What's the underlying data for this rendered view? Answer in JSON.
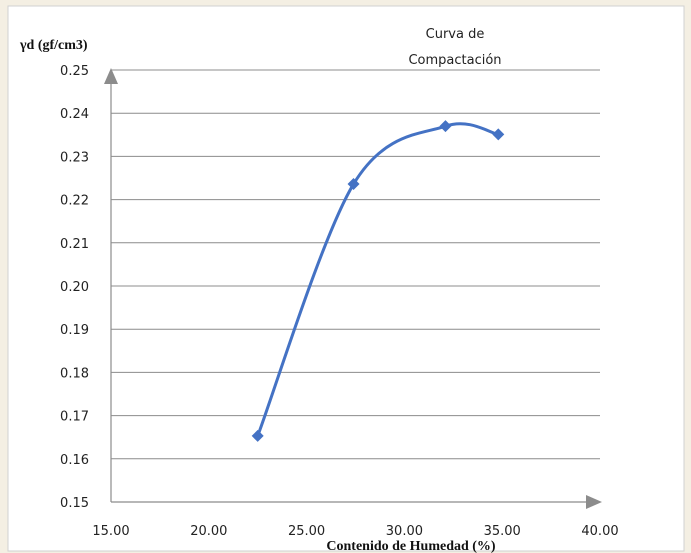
{
  "chart_data": {
    "type": "line",
    "title_lines": [
      "Curva de",
      "Compactación"
    ],
    "ylabel": "γd (gf/cm3)",
    "xlabel": "Contenido de Humedad (%)",
    "xlim": [
      15,
      40
    ],
    "ylim": [
      0.15,
      0.25
    ],
    "x_ticks": [
      "15.00",
      "20.00",
      "25.00",
      "30.00",
      "35.00",
      "40.00"
    ],
    "y_ticks": [
      "0.15",
      "0.16",
      "0.17",
      "0.18",
      "0.19",
      "0.20",
      "0.21",
      "0.22",
      "0.23",
      "0.24",
      "0.25"
    ],
    "grid": true,
    "smooth": true,
    "marker": "diamond",
    "series": [
      {
        "x": [
          22.5,
          27.4,
          32.1,
          34.8
        ],
        "y": [
          0.1653,
          0.2236,
          0.237,
          0.2351
        ],
        "color": "#4472C4"
      }
    ]
  }
}
